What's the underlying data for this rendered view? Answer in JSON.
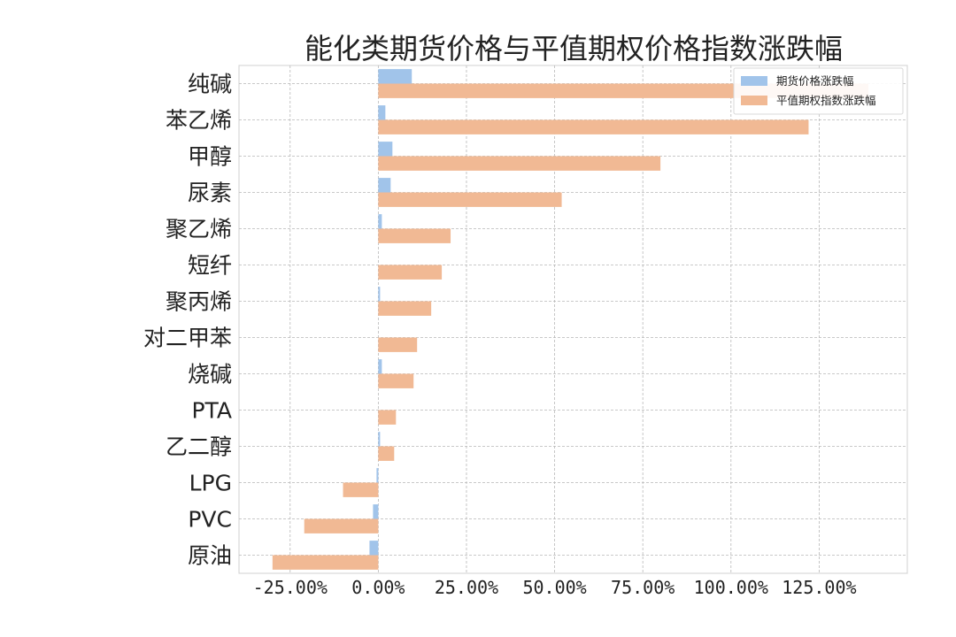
{
  "chart_data": {
    "type": "bar",
    "orientation": "horizontal",
    "title": "能化类期货价格与平值期权价格指数涨跌幅",
    "categories": [
      "纯碱",
      "苯乙烯",
      "甲醇",
      "尿素",
      "聚乙烯",
      "短纤",
      "聚丙烯",
      "对二甲苯",
      "烧碱",
      "PTA",
      "乙二醇",
      "LPG",
      "PVC",
      "原油"
    ],
    "series": [
      {
        "name": "期货价格涨跌幅",
        "color": "#a1c4ea",
        "values": [
          9.5,
          2.0,
          4.0,
          3.5,
          1.0,
          0.0,
          0.5,
          0.0,
          1.0,
          0.0,
          0.5,
          -0.5,
          -1.5,
          -2.5
        ]
      },
      {
        "name": "平值期权指数涨跌幅",
        "color": "#f1b994",
        "values": [
          139.0,
          122.0,
          80.0,
          52.0,
          20.5,
          18.0,
          15.0,
          11.0,
          10.0,
          5.0,
          4.5,
          -10.0,
          -21.0,
          -30.0
        ]
      }
    ],
    "x_ticks": [
      "-25.00%",
      "0.00%",
      "25.00%",
      "50.00%",
      "75.00%",
      "100.00%",
      "125.00%"
    ],
    "xlim": [
      -39.5,
      150
    ],
    "grid": true,
    "legend_position": "top-right"
  }
}
